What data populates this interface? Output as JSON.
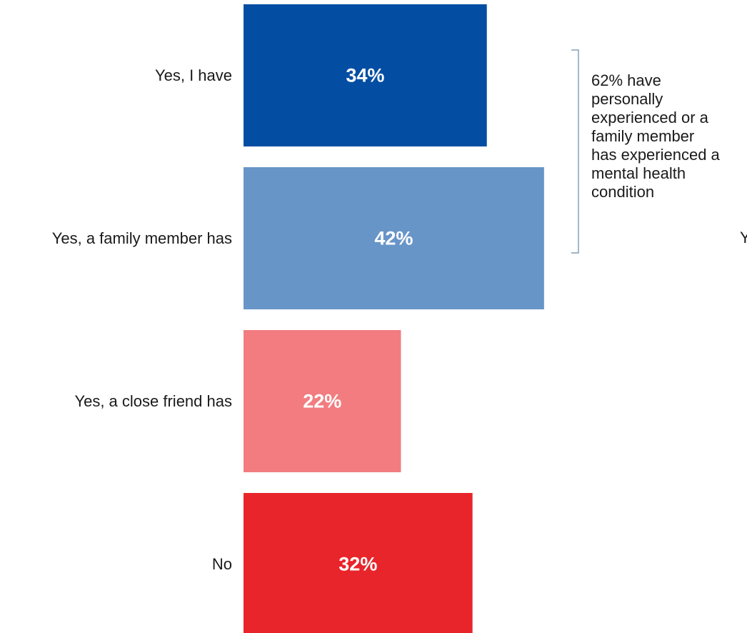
{
  "chart_data": {
    "type": "bar",
    "orientation": "horizontal",
    "categories": [
      "Yes, I have",
      "Yes, a family member has",
      "Yes, a close friend has",
      "No"
    ],
    "values": [
      34,
      42,
      22,
      32
    ],
    "value_labels": [
      "34%",
      "42%",
      "22%",
      "32%"
    ],
    "colors": [
      "#034ea2",
      "#6895c8",
      "#f27c80",
      "#e8252a"
    ],
    "unit": "%",
    "title": "",
    "xlabel": "",
    "ylabel": "",
    "xlim": [
      0,
      42
    ],
    "grid": false,
    "legend": "none",
    "annotation": {
      "text": "62% have\npersonally\nexperienced or a\nfamily member\nhas experienced a\nmental health\ncondition",
      "brackets": [
        "Yes, I have",
        "Yes, a family member has"
      ]
    },
    "clipped_text": "Y"
  }
}
